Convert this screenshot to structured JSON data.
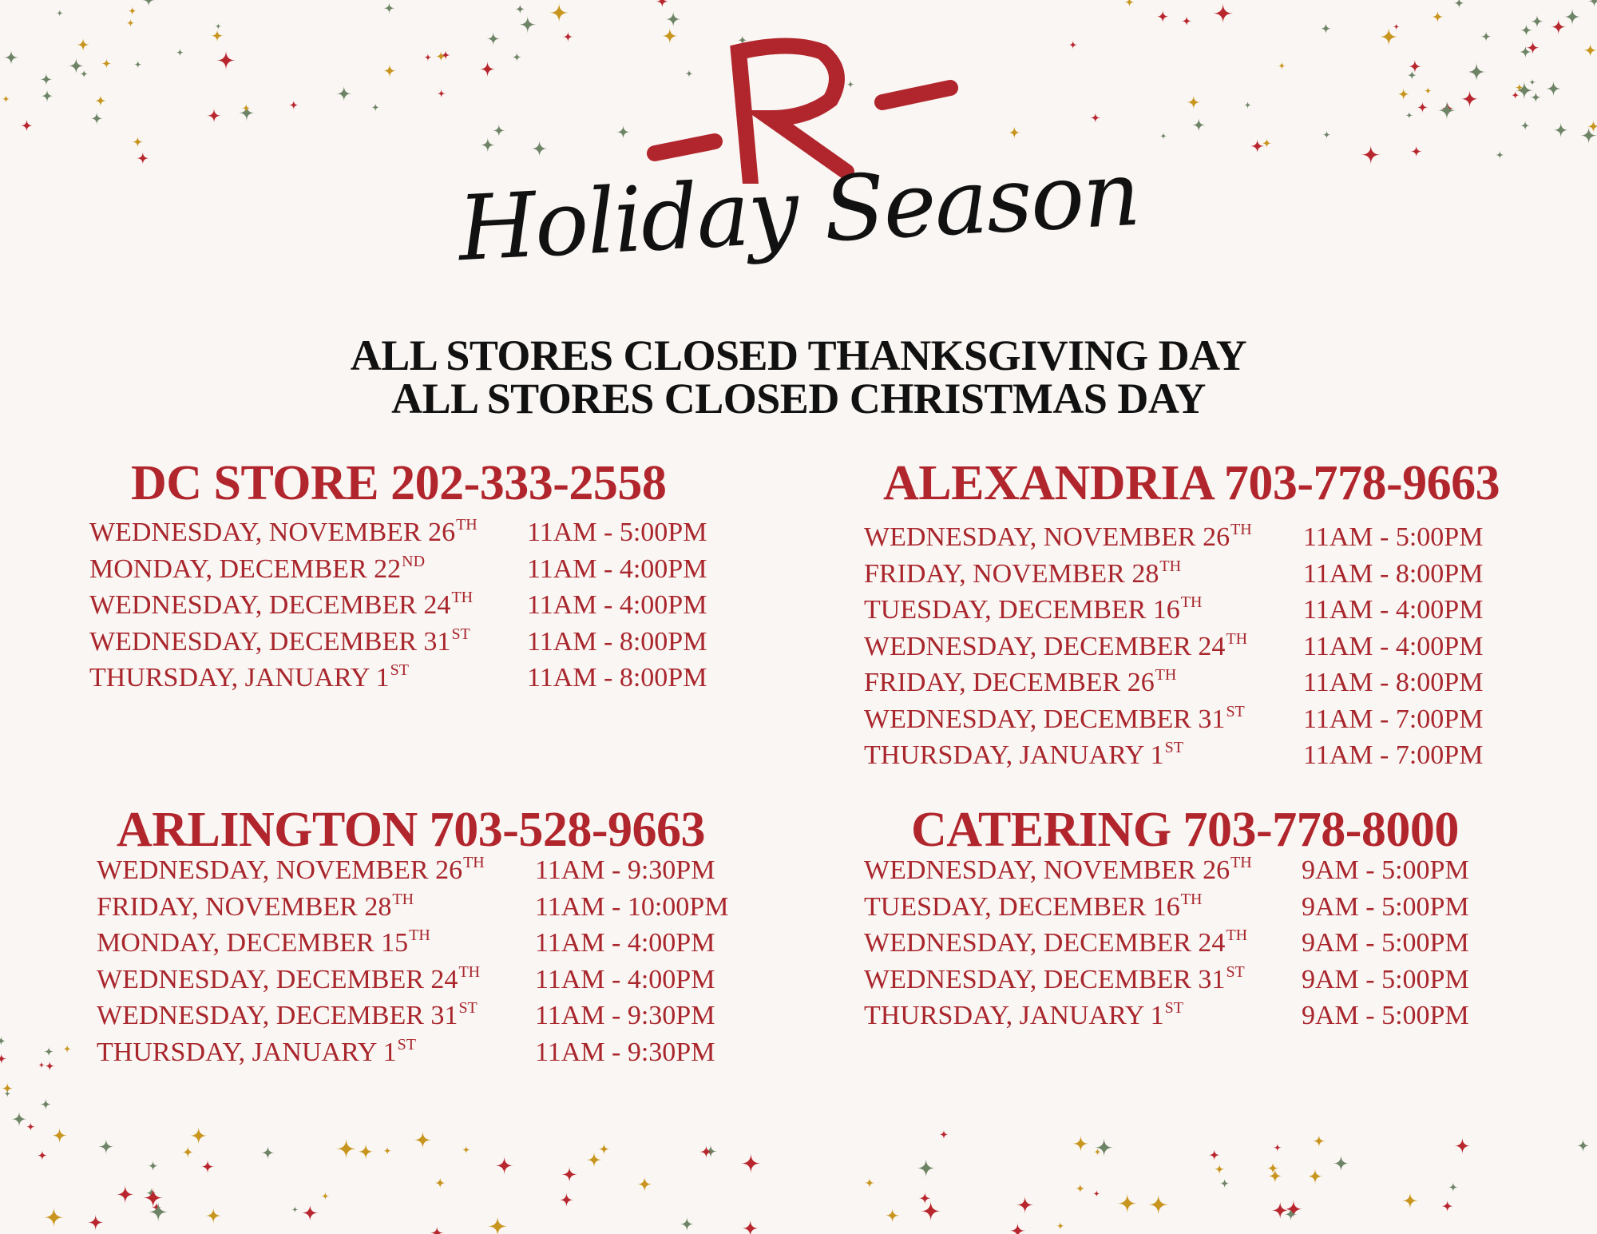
{
  "logo": {
    "letter": "R",
    "color": "#b1262d"
  },
  "title": "Holiday Season",
  "notices": [
    "ALL STORES CLOSED THANKSGIVING DAY",
    "ALL STORES CLOSED CHRISTMAS DAY"
  ],
  "colors": {
    "background": "#faf6f3",
    "accent_red": "#b1262d",
    "star_gold": "#c8951f",
    "star_green": "#6e8466",
    "star_red": "#b8262e",
    "text_black": "#111111"
  },
  "stores": [
    {
      "heading": "DC STORE 202-333-2558",
      "rows": [
        {
          "date": "WEDNESDAY, NOVEMBER 26",
          "suffix": "TH",
          "hours": "11AM - 5:00PM"
        },
        {
          "date": "MONDAY, DECEMBER 22",
          "suffix": "ND",
          "hours": "11AM - 4:00PM"
        },
        {
          "date": "WEDNESDAY, DECEMBER 24",
          "suffix": "TH",
          "hours": "11AM - 4:00PM"
        },
        {
          "date": "WEDNESDAY, DECEMBER 31",
          "suffix": "ST",
          "hours": "11AM - 8:00PM"
        },
        {
          "date": "THURSDAY, JANUARY 1",
          "suffix": "ST",
          "hours": "11AM - 8:00PM"
        }
      ]
    },
    {
      "heading": "ALEXANDRIA 703-778-9663",
      "rows": [
        {
          "date": "WEDNESDAY, NOVEMBER 26",
          "suffix": "TH",
          "hours": "11AM - 5:00PM"
        },
        {
          "date": "FRIDAY, NOVEMBER 28",
          "suffix": "TH",
          "hours": "11AM - 8:00PM"
        },
        {
          "date": "TUESDAY, DECEMBER 16",
          "suffix": "TH",
          "hours": "11AM - 4:00PM"
        },
        {
          "date": "WEDNESDAY, DECEMBER 24",
          "suffix": "TH",
          "hours": "11AM - 4:00PM"
        },
        {
          "date": "FRIDAY, DECEMBER 26",
          "suffix": "TH",
          "hours": "11AM - 8:00PM"
        },
        {
          "date": "WEDNESDAY, DECEMBER 31",
          "suffix": "ST",
          "hours": "11AM - 7:00PM"
        },
        {
          "date": "THURSDAY, JANUARY 1",
          "suffix": "ST",
          "hours": "11AM - 7:00PM"
        }
      ]
    },
    {
      "heading": "ARLINGTON 703-528-9663",
      "rows": [
        {
          "date": "WEDNESDAY, NOVEMBER 26",
          "suffix": "TH",
          "hours": "11AM - 9:30PM"
        },
        {
          "date": "FRIDAY, NOVEMBER 28",
          "suffix": "TH",
          "hours": "11AM - 10:00PM"
        },
        {
          "date": "MONDAY, DECEMBER 15",
          "suffix": "TH",
          "hours": "11AM - 4:00PM"
        },
        {
          "date": "WEDNESDAY, DECEMBER 24",
          "suffix": "TH",
          "hours": "11AM - 4:00PM"
        },
        {
          "date": "WEDNESDAY, DECEMBER 31",
          "suffix": "ST",
          "hours": "11AM - 9:30PM"
        },
        {
          "date": "THURSDAY, JANUARY 1",
          "suffix": "ST",
          "hours": "11AM - 9:30PM"
        }
      ]
    },
    {
      "heading": "CATERING 703-778-8000",
      "rows": [
        {
          "date": "WEDNESDAY, NOVEMBER 26",
          "suffix": "TH",
          "hours": "9AM - 5:00PM"
        },
        {
          "date": "TUESDAY, DECEMBER 16",
          "suffix": "TH",
          "hours": "9AM - 5:00PM"
        },
        {
          "date": "WEDNESDAY, DECEMBER 24",
          "suffix": "TH",
          "hours": "9AM - 5:00PM"
        },
        {
          "date": "WEDNESDAY, DECEMBER 31",
          "suffix": "ST",
          "hours": "9AM - 5:00PM"
        },
        {
          "date": "THURSDAY, JANUARY 1",
          "suffix": "ST",
          "hours": "9AM - 5:00PM"
        }
      ]
    }
  ]
}
